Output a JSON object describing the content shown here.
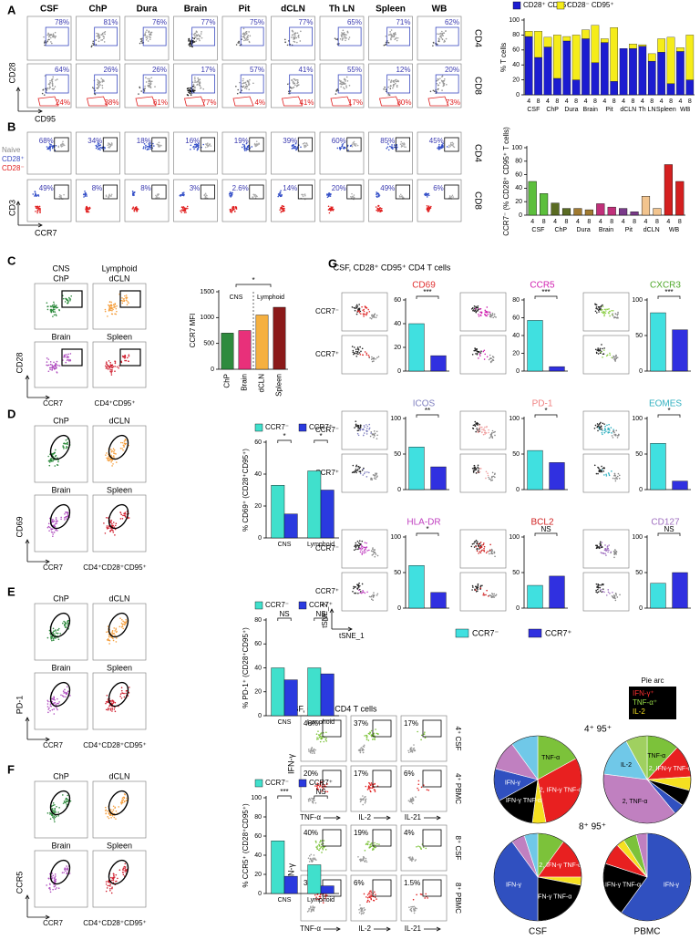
{
  "panels": {
    "A": {
      "label": "A",
      "columns": [
        "CSF",
        "ChP",
        "Dura",
        "Brain",
        "Pit",
        "dCLN",
        "Th LN",
        "Spleen",
        "WB"
      ],
      "rows": [
        "CD4",
        "CD8"
      ],
      "y_axis": "CD28",
      "x_axis": "CD95",
      "upper_gate": [
        [
          "78%",
          "81%",
          "76%",
          "77%",
          "75%",
          "77%",
          "65%",
          "71%",
          "62%"
        ],
        [
          "64%",
          "26%",
          "26%",
          "17%",
          "57%",
          "41%",
          "55%",
          "12%",
          "20%"
        ]
      ],
      "lower_gate": [
        "24%",
        "38%",
        "61%",
        "77%",
        "4%",
        "41%",
        "17%",
        "80%",
        "73%"
      ]
    },
    "B": {
      "label": "B",
      "legend": [
        "Naive",
        "CD28⁺",
        "CD28⁻"
      ],
      "rows": [
        "CD4",
        "CD8"
      ],
      "y_axis": "CD3",
      "x_axis": "CCR7",
      "gate": [
        [
          "68%",
          "34%",
          "18%",
          "16%",
          "19%",
          "39%",
          "60%",
          "85%",
          "45%"
        ],
        [
          "49%",
          "8%",
          "8%",
          "3%",
          "2.6%",
          "14%",
          "20%",
          "49%",
          "6%"
        ]
      ]
    },
    "C": {
      "label": "C",
      "groups": [
        "CNS",
        "Lymphoid"
      ],
      "plots": [
        [
          "ChP",
          "dCLN"
        ],
        [
          "Brain",
          "Spleen"
        ]
      ],
      "y_axis": "CD28",
      "x_axis": "CCR7",
      "note": "CD4⁺CD95⁺"
    },
    "D": {
      "label": "D",
      "plots": [
        [
          "ChP",
          "dCLN"
        ],
        [
          "Brain",
          "Spleen"
        ]
      ],
      "y_axis": "CD69",
      "x_axis": "CCR7",
      "note": "CD4⁺CD28⁺CD95⁺"
    },
    "E": {
      "label": "E",
      "plots": [
        [
          "ChP",
          "dCLN"
        ],
        [
          "Brain",
          "Spleen"
        ]
      ],
      "y_axis": "PD-1",
      "x_axis": "CCR7",
      "note": "CD4⁺CD28⁺CD95⁺"
    },
    "F": {
      "label": "F",
      "plots": [
        [
          "ChP",
          "dCLN"
        ],
        [
          "Brain",
          "Spleen"
        ]
      ],
      "y_axis": "CCR5",
      "x_axis": "CCR7",
      "note": "CD4⁺CD28⁺CD95⁺"
    },
    "G": {
      "label": "G",
      "title": "CSF, CD28⁺ CD95⁺ CD4 T cells",
      "row_labels": [
        "CCR7⁻",
        "CCR7⁺"
      ],
      "y_axis": "tSNE_2",
      "x_axis": "tSNE_1",
      "legend": [
        "CCR7⁻",
        "CCR7⁺"
      ]
    },
    "H": {
      "label": "H",
      "title": "CSF, CD95⁺ CD4 T cells",
      "row_labels": [
        "4⁺ CSF",
        "4⁺ PBMC",
        "8⁺ CSF",
        "8⁺ PBMC"
      ],
      "x_axes": [
        "TNF-α",
        "IL-2",
        "IL-21"
      ],
      "y_axis": "IFN-γ",
      "gate": [
        [
          "46%",
          "37%",
          "17%"
        ],
        [
          "20%",
          "17%",
          "6%"
        ],
        [
          "40%",
          "19%",
          "4%"
        ],
        [
          "35%",
          "6%",
          "1.5%"
        ]
      ],
      "pie_legend": {
        "title": "Pie arc",
        "items": [
          "IFN-γ⁺",
          "TNF-α⁺",
          "IL-2"
        ]
      },
      "pie_rows": [
        "4⁺ 95⁺",
        "8⁺ 95⁺"
      ],
      "pie_columns": [
        "CSF",
        "PBMC"
      ]
    }
  },
  "chart_data": [
    {
      "type": "stacked_bar",
      "ylabel": "% T cells",
      "categories": [
        "4",
        "8",
        "4",
        "8",
        "4",
        "8",
        "4",
        "8",
        "4",
        "8",
        "4",
        "8",
        "4",
        "8",
        "4",
        "8",
        "4",
        "8"
      ],
      "groups": [
        "CSF",
        "ChP",
        "Dura",
        "Brain",
        "Pit",
        "dCLN",
        "Th LN",
        "Spleen",
        "WB"
      ],
      "series": [
        {
          "name": "CD28⁺ CD95⁺",
          "color": "#1c1cd0",
          "values": [
            78,
            50,
            64,
            22,
            72,
            20,
            75,
            43,
            70,
            18,
            62,
            62,
            65,
            45,
            57,
            15,
            58,
            20
          ]
        },
        {
          "name": "CD28⁻ CD95⁺",
          "color": "#f5ec1a",
          "values": [
            7,
            35,
            13,
            58,
            6,
            60,
            12,
            50,
            5,
            72,
            0,
            6,
            2,
            10,
            18,
            62,
            5,
            60
          ]
        }
      ],
      "ylim": [
        0,
        100
      ],
      "yticks": [
        0,
        20,
        40,
        60,
        80,
        100
      ],
      "legend": "top"
    },
    {
      "type": "bar",
      "ylabel": "CCR7⁻ (% CD28⁺ CD95⁺ T cells)",
      "categories": [
        "4",
        "8",
        "4",
        "8",
        "4",
        "8",
        "4",
        "8",
        "4",
        "8",
        "4",
        "8",
        "4",
        "8"
      ],
      "groups": [
        "CSF",
        "ChP",
        "Dura",
        "Brain",
        "Pit",
        "dCLN",
        "WB"
      ],
      "values": [
        50,
        32,
        18,
        10,
        10,
        8,
        17,
        12,
        10,
        5,
        28,
        10,
        75,
        50
      ],
      "colors": [
        "#5cbf3c",
        "#5cbf3c",
        "#5a6b22",
        "#5a6b22",
        "#a07a30",
        "#a07a30",
        "#c0307a",
        "#c0307a",
        "#7a3a8a",
        "#7a3a8a",
        "#f2c48e",
        "#f2c48e",
        "#d42020",
        "#d42020"
      ],
      "ylim": [
        0,
        100
      ],
      "yticks": [
        0,
        20,
        40,
        60,
        80,
        100
      ]
    },
    {
      "type": "bar",
      "ylabel": "CCR7 MFI",
      "categories": [
        "ChP",
        "Brain",
        "dCLN",
        "Spleen"
      ],
      "groups": [
        "CNS",
        "Lymphoid"
      ],
      "values": [
        700,
        750,
        1050,
        1200
      ],
      "colors": [
        "#2e8b3e",
        "#e8307a",
        "#f5b040",
        "#8b1a1a"
      ],
      "ylim": [
        0,
        1500
      ],
      "yticks": [
        0,
        500,
        1000,
        1500
      ],
      "sig": [
        "*"
      ]
    },
    {
      "type": "grouped_bar",
      "ylabel": "% CD69⁺ (CD28⁺CD95⁺)",
      "categories": [
        "CNS",
        "Lymphoid"
      ],
      "series": [
        {
          "name": "CCR7⁻",
          "color": "#40e0cc",
          "values": [
            33,
            42
          ]
        },
        {
          "name": "CCR7⁺",
          "color": "#2a3adf",
          "values": [
            15,
            30
          ]
        }
      ],
      "ylim": [
        0,
        60
      ],
      "yticks": [
        0,
        20,
        40,
        60
      ],
      "sig": [
        "*",
        "*"
      ],
      "legend": "top"
    },
    {
      "type": "grouped_bar",
      "ylabel": "% PD-1⁺ (CD28⁺CD95⁺)",
      "categories": [
        "CNS",
        "Lymphoid"
      ],
      "series": [
        {
          "name": "CCR7⁻",
          "color": "#40e0cc",
          "values": [
            40,
            40
          ]
        },
        {
          "name": "CCR7⁺",
          "color": "#2a3adf",
          "values": [
            30,
            35
          ]
        }
      ],
      "ylim": [
        0,
        80
      ],
      "yticks": [
        0,
        20,
        40,
        60,
        80
      ],
      "sig": [
        "NS",
        "NS"
      ],
      "legend": "top"
    },
    {
      "type": "grouped_bar",
      "ylabel": "% CCR5⁺ (CD28⁺CD95⁺)",
      "categories": [
        "CNS",
        "Lymphoid"
      ],
      "series": [
        {
          "name": "CCR7⁻",
          "color": "#40e0cc",
          "values": [
            55,
            30
          ]
        },
        {
          "name": "CCR7⁺",
          "color": "#2a3adf",
          "values": [
            18,
            8
          ]
        }
      ],
      "ylim": [
        0,
        100
      ],
      "yticks": [
        0,
        20,
        40,
        60,
        80,
        100
      ],
      "sig": [
        "***",
        "NS"
      ],
      "legend": "top"
    },
    {
      "type": "bar",
      "title": "CD69",
      "title_color": "#e03030",
      "categories": [
        null,
        null
      ],
      "values": [
        40,
        13
      ],
      "colors": [
        "#40e0e0",
        "#3030e0"
      ],
      "ylim": [
        0,
        60
      ],
      "yticks": [
        0,
        20,
        40,
        60
      ],
      "sig": [
        "***"
      ]
    },
    {
      "type": "bar",
      "title": "CCR5",
      "title_color": "#d020b0",
      "categories": [
        null,
        null
      ],
      "values": [
        57,
        5
      ],
      "colors": [
        "#40e0e0",
        "#3030e0"
      ],
      "ylim": [
        0,
        80
      ],
      "yticks": [
        0,
        20,
        40,
        60,
        80
      ],
      "sig": [
        "***"
      ]
    },
    {
      "type": "bar",
      "title": "CXCR3",
      "title_color": "#4fa82a",
      "categories": [
        null,
        null
      ],
      "values": [
        82,
        58
      ],
      "colors": [
        "#40e0e0",
        "#3030e0"
      ],
      "ylim": [
        0,
        100
      ],
      "yticks": [
        0,
        50,
        100
      ],
      "sig": [
        "***"
      ]
    },
    {
      "type": "bar",
      "title": "ICOS",
      "title_color": "#8080c0",
      "categories": [
        null,
        null
      ],
      "values": [
        60,
        32
      ],
      "colors": [
        "#40e0e0",
        "#3030e0"
      ],
      "ylim": [
        0,
        100
      ],
      "yticks": [
        0,
        50,
        100
      ],
      "sig": [
        "**"
      ]
    },
    {
      "type": "bar",
      "title": "PD-1",
      "title_color": "#f08080",
      "categories": [
        null,
        null
      ],
      "values": [
        55,
        38
      ],
      "colors": [
        "#40e0e0",
        "#3030e0"
      ],
      "ylim": [
        0,
        100
      ],
      "yticks": [
        0,
        50,
        100
      ],
      "sig": [
        "*"
      ]
    },
    {
      "type": "bar",
      "title": "EOMES",
      "title_color": "#30b0c0",
      "categories": [
        null,
        null
      ],
      "values": [
        65,
        12
      ],
      "colors": [
        "#40e0e0",
        "#3030e0"
      ],
      "ylim": [
        0,
        100
      ],
      "yticks": [
        0,
        50,
        100
      ],
      "sig": [
        "*"
      ]
    },
    {
      "type": "bar",
      "title": "HLA-DR",
      "title_color": "#c040c0",
      "categories": [
        null,
        null
      ],
      "values": [
        60,
        22
      ],
      "colors": [
        "#40e0e0",
        "#3030e0"
      ],
      "ylim": [
        0,
        100
      ],
      "yticks": [
        0,
        50,
        100
      ],
      "sig": [
        "*"
      ]
    },
    {
      "type": "bar",
      "title": "BCL2",
      "title_color": "#d02020",
      "categories": [
        null,
        null
      ],
      "values": [
        32,
        45
      ],
      "colors": [
        "#40e0e0",
        "#3030e0"
      ],
      "ylim": [
        0,
        100
      ],
      "yticks": [
        0,
        50,
        100
      ],
      "sig": [
        "NS"
      ]
    },
    {
      "type": "bar",
      "title": "CD127",
      "title_color": "#a070c0",
      "categories": [
        null,
        null
      ],
      "values": [
        35,
        50
      ],
      "colors": [
        "#40e0e0",
        "#3030e0"
      ],
      "ylim": [
        0,
        100
      ],
      "yticks": [
        0,
        50,
        100
      ],
      "sig": [
        "NS"
      ]
    },
    {
      "type": "pie",
      "categories": [
        "TNF-α",
        "2, IFN-γ TNF-α",
        null,
        "IFN-γ TNF-α",
        "IFN-γ",
        null,
        null
      ],
      "values": [
        17,
        30,
        5,
        15,
        12,
        11,
        10
      ],
      "colors": [
        "#7cc23a",
        "#e82020",
        "#f5e020",
        "#000000",
        "#3050c0",
        "#c080c0",
        "#70c8e8"
      ]
    },
    {
      "type": "pie",
      "categories": [
        "TNF-α",
        "2, IFN-γ TNF-α",
        null,
        null,
        null,
        "2, TNF-α",
        "IL-2",
        null
      ],
      "values": [
        12,
        12,
        5,
        6,
        4,
        38,
        15,
        8
      ],
      "colors": [
        "#7cc23a",
        "#e82020",
        "#f5e020",
        "#000000",
        "#3050c0",
        "#c080c0",
        "#70c8e8",
        "#a0d060"
      ]
    },
    {
      "type": "pie",
      "categories": [
        null,
        "2, IFN-γ TNF-α",
        null,
        "IFN-γ TNF-α",
        "IFN-γ",
        null,
        null
      ],
      "values": [
        10,
        15,
        3,
        22,
        40,
        5,
        5
      ],
      "colors": [
        "#7cc23a",
        "#e82020",
        "#f5e020",
        "#000000",
        "#3050c0",
        "#c080c0",
        "#70c8e8"
      ]
    },
    {
      "type": "pie",
      "categories": [
        "IFN-γ",
        "IFN-γ TNF-α",
        null,
        null,
        null,
        null
      ],
      "values": [
        60,
        20,
        8,
        3,
        5,
        4
      ],
      "colors": [
        "#3050c0",
        "#000000",
        "#e82020",
        "#f5e020",
        "#7cc23a",
        "#c080c0"
      ]
    }
  ]
}
